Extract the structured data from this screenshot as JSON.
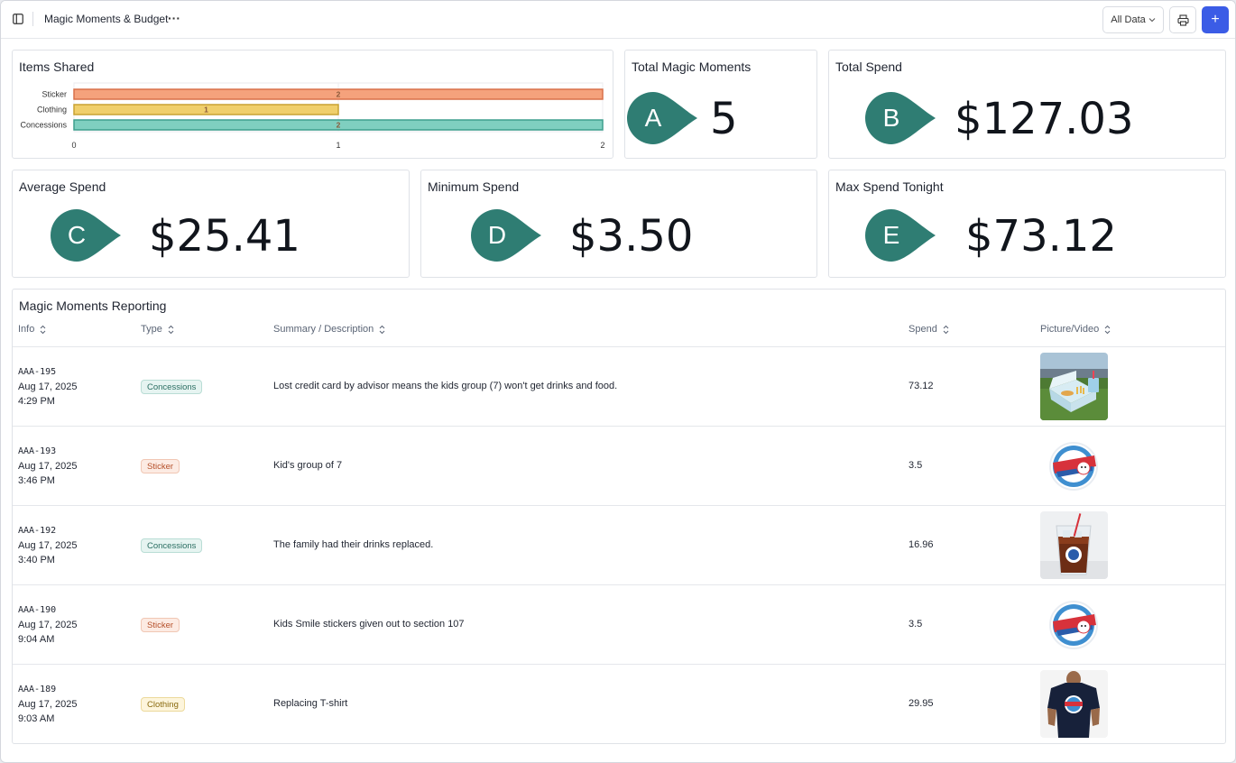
{
  "topbar": {
    "title": "Magic Moments & Budget",
    "more_label": "···",
    "filter_label": "All Data",
    "add_label": "+"
  },
  "items_shared": {
    "title": "Items Shared"
  },
  "chart_data": {
    "type": "bar",
    "orientation": "horizontal",
    "title": "Items Shared",
    "categories": [
      "Sticker",
      "Clothing",
      "Concessions"
    ],
    "values": [
      2,
      1,
      2
    ],
    "xlim": [
      0,
      2
    ],
    "xticks": [
      "0",
      "1",
      "2"
    ],
    "colors": [
      "#f5a27c",
      "#f0cf6b",
      "#7fcfc0"
    ],
    "edge_colors": [
      "#d9714a",
      "#c9a232",
      "#3f9f8d"
    ],
    "data_labels": [
      "2",
      "1",
      "2"
    ]
  },
  "kpis": {
    "total_moments": {
      "title": "Total Magic Moments",
      "letter": "A",
      "value": "5"
    },
    "total_spend": {
      "title": "Total Spend",
      "letter": "B",
      "value": "$127.03"
    },
    "average_spend": {
      "title": "Average Spend",
      "letter": "C",
      "value": "$25.41"
    },
    "minimum_spend": {
      "title": "Minimum Spend",
      "letter": "D",
      "value": "$3.50"
    },
    "max_spend": {
      "title": "Max Spend Tonight",
      "letter": "E",
      "value": "$73.12"
    }
  },
  "badge_color": "#2f7d73",
  "report": {
    "title": "Magic Moments Reporting",
    "columns": {
      "info": "Info",
      "type": "Type",
      "summary": "Summary / Description",
      "spend": "Spend",
      "picture": "Picture/Video"
    },
    "rows": [
      {
        "id": "AAA-195",
        "date": "Aug 17, 2025",
        "time": "4:29 PM",
        "type": "Concessions",
        "type_class": "concessions",
        "desc": "Lost credit card by advisor means the kids group (7) won't get drinks and food.",
        "spend": "73.12",
        "picture": "food-box-image"
      },
      {
        "id": "AAA-193",
        "date": "Aug 17, 2025",
        "time": "3:46 PM",
        "type": "Sticker",
        "type_class": "sticker",
        "desc": "Kid's group of 7",
        "spend": "3.5",
        "picture": "baseball-star-sticker-image"
      },
      {
        "id": "AAA-192",
        "date": "Aug 17, 2025",
        "time": "3:40 PM",
        "type": "Concessions",
        "type_class": "concessions",
        "desc": "The family had their drinks replaced.",
        "spend": "16.96",
        "picture": "drink-cup-image"
      },
      {
        "id": "AAA-190",
        "date": "Aug 17, 2025",
        "time": "9:04 AM",
        "type": "Sticker",
        "type_class": "sticker",
        "desc": "Kids Smile stickers given out to section 107",
        "spend": "3.5",
        "picture": "baseball-star-sticker-image"
      },
      {
        "id": "AAA-189",
        "date": "Aug 17, 2025",
        "time": "9:03 AM",
        "type": "Clothing",
        "type_class": "clothing",
        "desc": "Replacing T-shirt",
        "spend": "29.95",
        "picture": "tshirt-image"
      }
    ]
  }
}
